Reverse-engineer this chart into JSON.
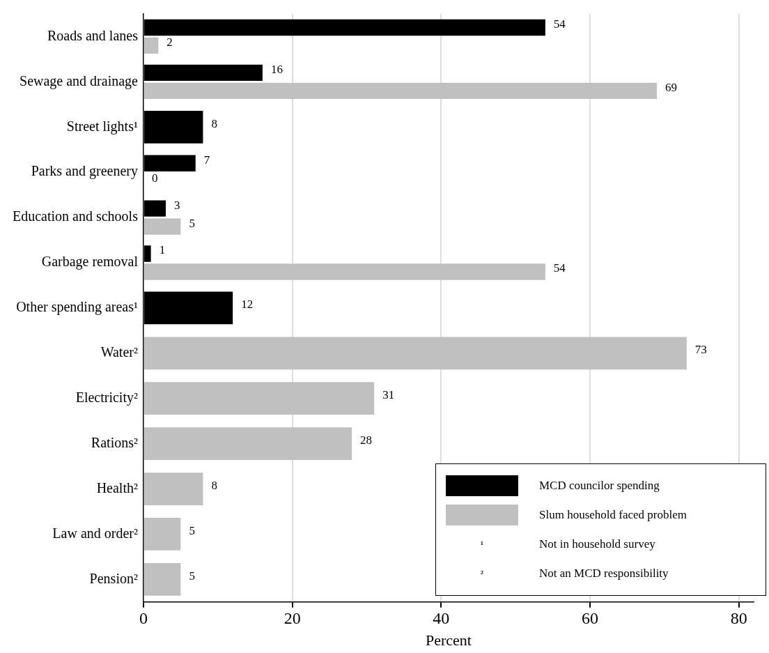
{
  "chart_data": {
    "type": "bar",
    "orientation": "horizontal",
    "categories": [
      "Roads and lanes",
      "Sewage and drainage",
      "Street lights¹",
      "Parks and greenery",
      "Education and schools",
      "Garbage removal",
      "Other spending areas¹",
      "Water²",
      "Electricity²",
      "Rations²",
      "Health²",
      "Law and order²",
      "Pension²"
    ],
    "series": [
      {
        "name": "MCD councilor spending",
        "color": "#000000",
        "values": [
          54,
          16,
          8,
          7,
          3,
          1,
          12,
          null,
          null,
          null,
          null,
          null,
          null
        ]
      },
      {
        "name": "Slum household faced problem",
        "color": "#c0c0c0",
        "values": [
          2,
          69,
          null,
          0,
          5,
          54,
          null,
          73,
          31,
          28,
          8,
          5,
          5
        ]
      }
    ],
    "xlabel": "Percent",
    "xlim": [
      0,
      82
    ],
    "xticks": [
      0,
      20,
      40,
      60,
      80
    ],
    "grid": "x",
    "legend": "bottom right",
    "data_labels": true,
    "annotations": [
      "¹ Not in household survey",
      "² Not an MCD responsibility"
    ]
  }
}
